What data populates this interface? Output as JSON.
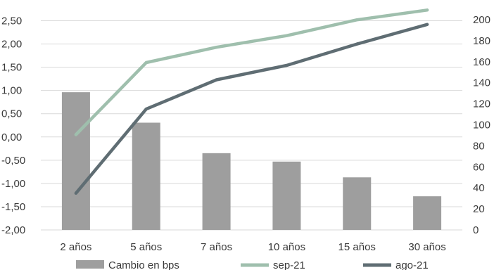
{
  "chart_data": {
    "type": "bar",
    "categories": [
      "2 años",
      "5 años",
      "7 años",
      "10 años",
      "15 años",
      "30 años"
    ],
    "series": [
      {
        "name": "Cambio en bps",
        "type": "bar",
        "axis": "right",
        "color": "#9e9e9e",
        "values": [
          131,
          102,
          73,
          65,
          50,
          32
        ]
      },
      {
        "name": "sep-21",
        "type": "line",
        "axis": "left",
        "color": "#9fbfad",
        "values": [
          0.05,
          1.6,
          1.93,
          2.18,
          2.52,
          2.73
        ]
      },
      {
        "name": "ago-21",
        "type": "line",
        "axis": "left",
        "color": "#5f6d73",
        "values": [
          -1.21,
          0.6,
          1.23,
          1.54,
          2.0,
          2.42
        ]
      }
    ],
    "y_left": {
      "ylim": [
        -2.0,
        2.75
      ],
      "ticks": [
        "-2,00",
        "-1,50",
        "-1,00",
        "-0,50",
        "0,00",
        "0,50",
        "1,00",
        "1,50",
        "2,00",
        "2,50"
      ],
      "tick_values": [
        -2,
        -1.5,
        -1,
        -0.5,
        0,
        0.5,
        1,
        1.5,
        2,
        2.5
      ]
    },
    "y_right": {
      "ylim": [
        0,
        210
      ],
      "ticks": [
        "0",
        "20",
        "40",
        "60",
        "80",
        "100",
        "120",
        "140",
        "160",
        "180",
        "200"
      ],
      "tick_values": [
        0,
        20,
        40,
        60,
        80,
        100,
        120,
        140,
        160,
        180,
        200
      ]
    },
    "grid": true,
    "legend_position": "bottom"
  }
}
